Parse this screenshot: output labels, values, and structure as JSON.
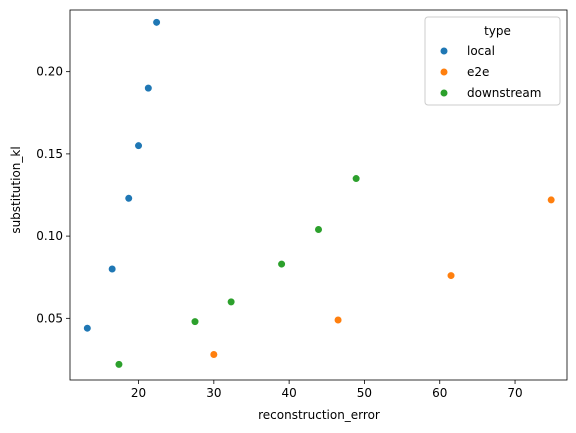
{
  "chart_data": {
    "type": "scatter",
    "title": "",
    "xlabel": "reconstruction_error",
    "ylabel": "substitution_kl",
    "xlim": [
      10.9,
      76.9
    ],
    "ylim": [
      0.0125,
      0.2375
    ],
    "xticks": [
      20,
      30,
      40,
      50,
      60,
      70
    ],
    "yticks": [
      0.05,
      0.1,
      0.15,
      0.2
    ],
    "ytick_labels": [
      "0.05",
      "0.10",
      "0.15",
      "0.20"
    ],
    "grid": false,
    "legend": {
      "title": "type",
      "position": "top-right"
    },
    "series": [
      {
        "name": "local",
        "color": "#1f77b4",
        "points": [
          {
            "x": 13.2,
            "y": 0.044
          },
          {
            "x": 16.5,
            "y": 0.08
          },
          {
            "x": 18.7,
            "y": 0.123
          },
          {
            "x": 20.0,
            "y": 0.155
          },
          {
            "x": 21.3,
            "y": 0.19
          },
          {
            "x": 22.4,
            "y": 0.23
          }
        ]
      },
      {
        "name": "e2e",
        "color": "#ff7f0e",
        "points": [
          {
            "x": 30.0,
            "y": 0.028
          },
          {
            "x": 46.5,
            "y": 0.049
          },
          {
            "x": 61.5,
            "y": 0.076
          },
          {
            "x": 74.8,
            "y": 0.122
          }
        ]
      },
      {
        "name": "downstream",
        "color": "#2ca02c",
        "points": [
          {
            "x": 17.4,
            "y": 0.022
          },
          {
            "x": 27.5,
            "y": 0.048
          },
          {
            "x": 32.3,
            "y": 0.06
          },
          {
            "x": 39.0,
            "y": 0.083
          },
          {
            "x": 43.9,
            "y": 0.104
          },
          {
            "x": 48.9,
            "y": 0.135
          }
        ]
      }
    ]
  }
}
